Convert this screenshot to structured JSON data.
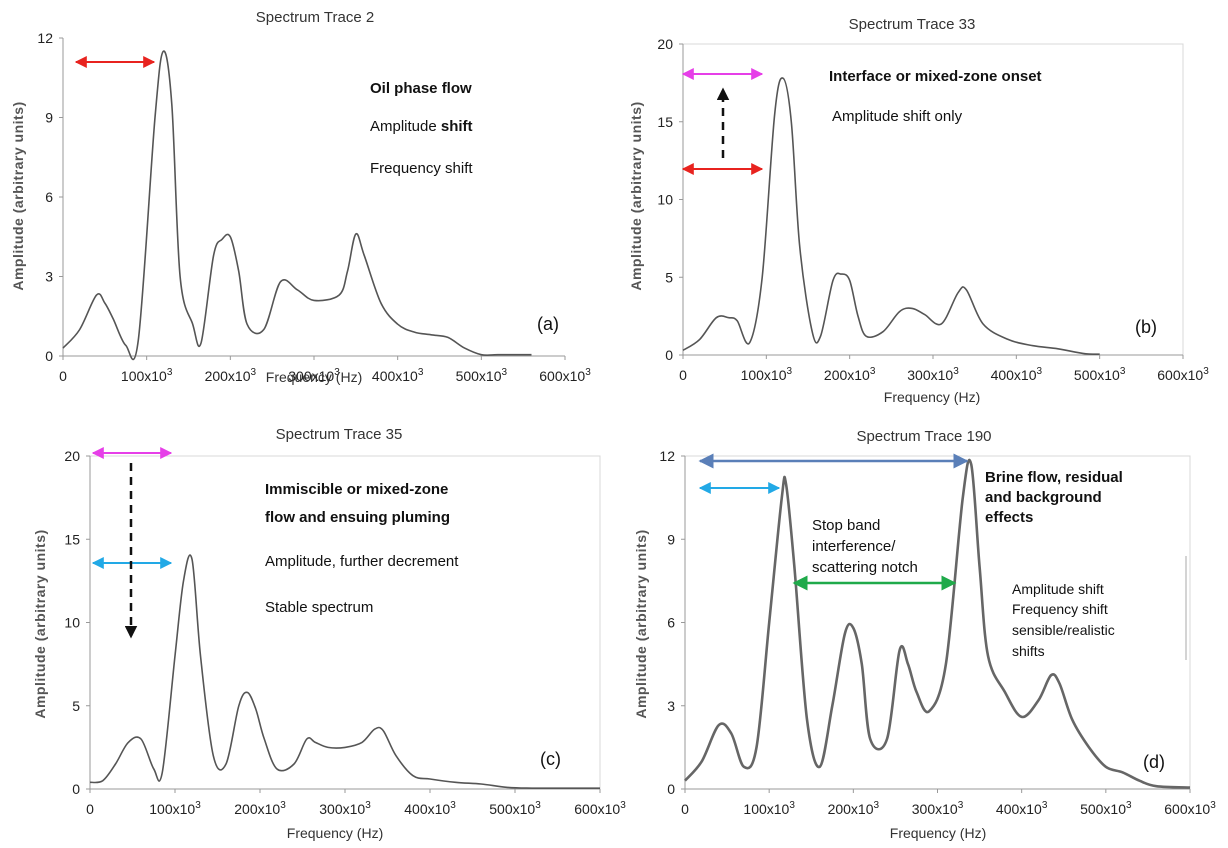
{
  "colors": {
    "red": "#e8231f",
    "magenta": "#e63fe8",
    "cyan": "#22a9e6",
    "steel": "#5a7fb8",
    "green": "#1faa4a",
    "black": "#111111"
  },
  "chart_data": [
    {
      "type": "line",
      "title": "Spectrum Trace 2",
      "xlabel": "Frequency (Hz)",
      "ylabel": "Amplitude (arbitrary units)",
      "xlim": [
        0,
        600000
      ],
      "ylim": [
        0,
        12
      ],
      "x_ticks": [
        "0",
        "100x10",
        "200x10",
        "300x10",
        "400x10",
        "500x10",
        "600x10"
      ],
      "x_tick_exp": "3",
      "y_ticks": [
        "0",
        "3",
        "6",
        "9",
        "12"
      ],
      "panel_label": "(a)",
      "series": [
        {
          "x": [
            0,
            20000,
            40000,
            50000,
            60000,
            75000,
            90000,
            110000,
            120000,
            130000,
            140000,
            155000,
            165000,
            180000,
            190000,
            200000,
            210000,
            220000,
            240000,
            260000,
            280000,
            300000,
            330000,
            340000,
            350000,
            360000,
            380000,
            400000,
            420000,
            440000,
            460000,
            480000,
            500000,
            520000,
            540000,
            560000
          ],
          "y": [
            0.3,
            1.0,
            2.3,
            2.0,
            1.4,
            0.4,
            0.6,
            9.0,
            11.5,
            9.5,
            3.0,
            1.2,
            0.5,
            3.8,
            4.4,
            4.5,
            3.2,
            1.2,
            1.0,
            2.8,
            2.5,
            2.1,
            2.3,
            3.2,
            4.6,
            3.8,
            2.0,
            1.2,
            0.9,
            0.8,
            0.7,
            0.3,
            0.05,
            0.05,
            0.05,
            0.05
          ]
        }
      ],
      "annotations": [
        {
          "text": "Oil phase flow",
          "bold": true
        },
        {
          "text": "Amplitude ",
          "bold_suffix": "shift"
        },
        {
          "text": "Frequency shift"
        }
      ]
    },
    {
      "type": "line",
      "title": "Spectrum Trace 33",
      "xlabel": "Frequency (Hz)",
      "ylabel": "Amplitude (arbitrary units)",
      "xlim": [
        0,
        600000
      ],
      "ylim": [
        0,
        20
      ],
      "x_ticks": [
        "0",
        "100x10",
        "200x10",
        "300x10",
        "400x10",
        "500x10",
        "600x10"
      ],
      "x_tick_exp": "3",
      "y_ticks": [
        "0",
        "5",
        "10",
        "15",
        "20"
      ],
      "panel_label": "(b)",
      "series": [
        {
          "x": [
            0,
            20000,
            40000,
            55000,
            65000,
            80000,
            95000,
            110000,
            120000,
            130000,
            140000,
            155000,
            165000,
            180000,
            190000,
            200000,
            210000,
            220000,
            240000,
            260000,
            275000,
            290000,
            310000,
            330000,
            340000,
            360000,
            390000,
            420000,
            450000,
            480000,
            500000
          ],
          "y": [
            0.3,
            1.0,
            2.4,
            2.4,
            2.2,
            0.8,
            5.0,
            15.5,
            17.8,
            15.0,
            7.0,
            1.5,
            1.2,
            4.8,
            5.2,
            4.8,
            2.5,
            1.2,
            1.5,
            2.8,
            3.0,
            2.6,
            2.0,
            4.0,
            4.2,
            2.0,
            1.0,
            0.6,
            0.4,
            0.1,
            0.05
          ]
        }
      ],
      "annotations": [
        {
          "text": "Interface or mixed-zone onset",
          "bold": true
        },
        {
          "text": "Amplitude shift only"
        }
      ]
    },
    {
      "type": "line",
      "title": "Spectrum Trace 35",
      "xlabel": "Frequency (Hz)",
      "ylabel": "Amplitude (arbitrary units)",
      "xlim": [
        0,
        600000
      ],
      "ylim": [
        0,
        20
      ],
      "x_ticks": [
        "0",
        "100x10",
        "200x10",
        "300x10",
        "400x10",
        "500x10",
        "600x10"
      ],
      "x_tick_exp": "3",
      "y_ticks": [
        "0",
        "5",
        "10",
        "15",
        "20"
      ],
      "panel_label": "(c)",
      "series": [
        {
          "x": [
            0,
            15000,
            30000,
            45000,
            60000,
            75000,
            85000,
            100000,
            110000,
            120000,
            130000,
            145000,
            160000,
            175000,
            185000,
            195000,
            205000,
            220000,
            240000,
            255000,
            265000,
            280000,
            300000,
            320000,
            335000,
            345000,
            360000,
            380000,
            400000,
            430000,
            460000,
            490000,
            520000,
            560000,
            600000
          ],
          "y": [
            0.4,
            0.5,
            1.5,
            2.8,
            3.0,
            1.2,
            1.0,
            8.0,
            12.5,
            13.8,
            8.0,
            2.0,
            1.5,
            5.0,
            5.8,
            4.8,
            3.0,
            1.2,
            1.5,
            3.0,
            2.8,
            2.5,
            2.5,
            2.8,
            3.6,
            3.5,
            2.0,
            0.8,
            0.6,
            0.4,
            0.3,
            0.1,
            0.05,
            0.05,
            0.05
          ]
        }
      ],
      "annotations": [
        {
          "text": "Immiscible or mixed-zone",
          "bold": true
        },
        {
          "text": "flow and ensuing pluming",
          "bold": true
        },
        {
          "text": "Amplitude, further decrement"
        },
        {
          "text": "Stable spectrum"
        }
      ]
    },
    {
      "type": "line",
      "title": "Spectrum Trace 190",
      "xlabel": "Frequency (Hz)",
      "ylabel": "Amplitude (arbitrary units)",
      "xlim": [
        0,
        600000
      ],
      "ylim": [
        0,
        12
      ],
      "x_ticks": [
        "0",
        "100x10",
        "200x10",
        "300x10",
        "400x10",
        "500x10",
        "600x10"
      ],
      "x_tick_exp": "3",
      "y_ticks": [
        "0",
        "3",
        "6",
        "9",
        "12"
      ],
      "panel_label": "(d)",
      "series": [
        {
          "x": [
            0,
            20000,
            40000,
            55000,
            70000,
            85000,
            100000,
            115000,
            120000,
            130000,
            145000,
            160000,
            175000,
            190000,
            200000,
            210000,
            220000,
            240000,
            255000,
            265000,
            275000,
            290000,
            310000,
            330000,
            340000,
            350000,
            360000,
            380000,
            400000,
            420000,
            435000,
            445000,
            460000,
            480000,
            500000,
            520000,
            540000,
            560000,
            600000
          ],
          "y": [
            0.3,
            1.0,
            2.3,
            2.0,
            0.8,
            1.5,
            6.0,
            10.5,
            11.0,
            8.0,
            2.5,
            0.8,
            3.0,
            5.6,
            5.8,
            4.5,
            1.8,
            1.8,
            5.0,
            4.5,
            3.5,
            2.8,
            4.5,
            10.5,
            11.7,
            8.0,
            4.8,
            3.5,
            2.6,
            3.2,
            4.1,
            3.8,
            2.5,
            1.5,
            0.8,
            0.6,
            0.3,
            0.1,
            0.05
          ]
        }
      ],
      "annotations": [
        {
          "text": "Brine flow, residual",
          "bold": true
        },
        {
          "text": "and background",
          "bold": true
        },
        {
          "text": " effects",
          "bold": true
        },
        {
          "text": "Stop band"
        },
        {
          "text": "interference/"
        },
        {
          "text": "scattering notch"
        },
        {
          "text": "Amplitude shift"
        },
        {
          "text": "Frequency shift"
        },
        {
          "text": "sensible/realistic"
        },
        {
          "text": "shifts"
        }
      ]
    }
  ]
}
